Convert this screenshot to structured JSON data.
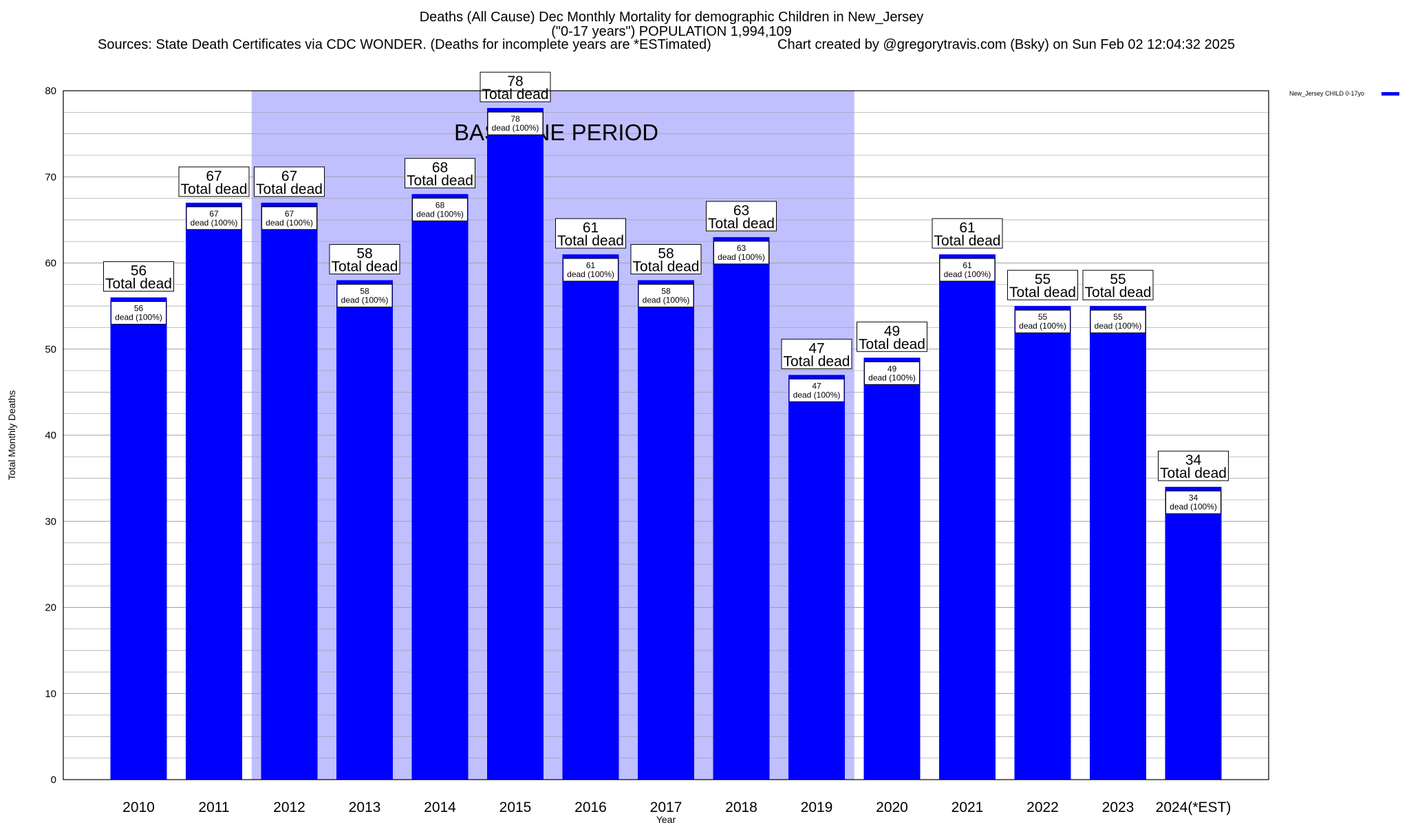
{
  "header": {
    "title": "Deaths (All Cause) Dec Monthly Mortality for demographic Children in New_Jersey",
    "subtitle": "(\"0-17 years\") POPULATION 1,994,109",
    "sources": "Sources: State Death Certificates via CDC WONDER. (Deaths for incomplete years are *ESTimated)",
    "credit": "Chart created by @gregorytravis.com (Bsky) on Sun Feb 02 12:04:32 2025"
  },
  "legend": {
    "label": "New_Jersey CHILD 0-17yo",
    "color": "#0000ff"
  },
  "chart_data": {
    "type": "bar",
    "title": "Deaths (All Cause) Dec Monthly Mortality for demographic Children in New_Jersey",
    "xlabel": "Year",
    "ylabel": "Total Monthly Deaths",
    "ylim": [
      0,
      80
    ],
    "yticks": [
      0,
      10,
      20,
      30,
      40,
      50,
      60,
      70,
      80
    ],
    "grid": true,
    "legend_position": "top-right",
    "bar_color": "#0000ff",
    "baseline_color": "#c0c0ff",
    "categories": [
      "2010",
      "2011",
      "2012",
      "2013",
      "2014",
      "2015",
      "2016",
      "2017",
      "2018",
      "2019",
      "2020",
      "2021",
      "2022",
      "2023",
      "2024(*EST)"
    ],
    "series": [
      {
        "name": "New_Jersey CHILD 0-17yo",
        "values": [
          56,
          67,
          67,
          58,
          68,
          78,
          61,
          58,
          63,
          47,
          49,
          61,
          55,
          55,
          34
        ]
      }
    ],
    "baseline": {
      "label": "BASELINE PERIOD",
      "from": "2012",
      "to": "2019"
    },
    "top_label_suffix": "Total dead",
    "inner_label_suffix": "dead (100%)"
  }
}
